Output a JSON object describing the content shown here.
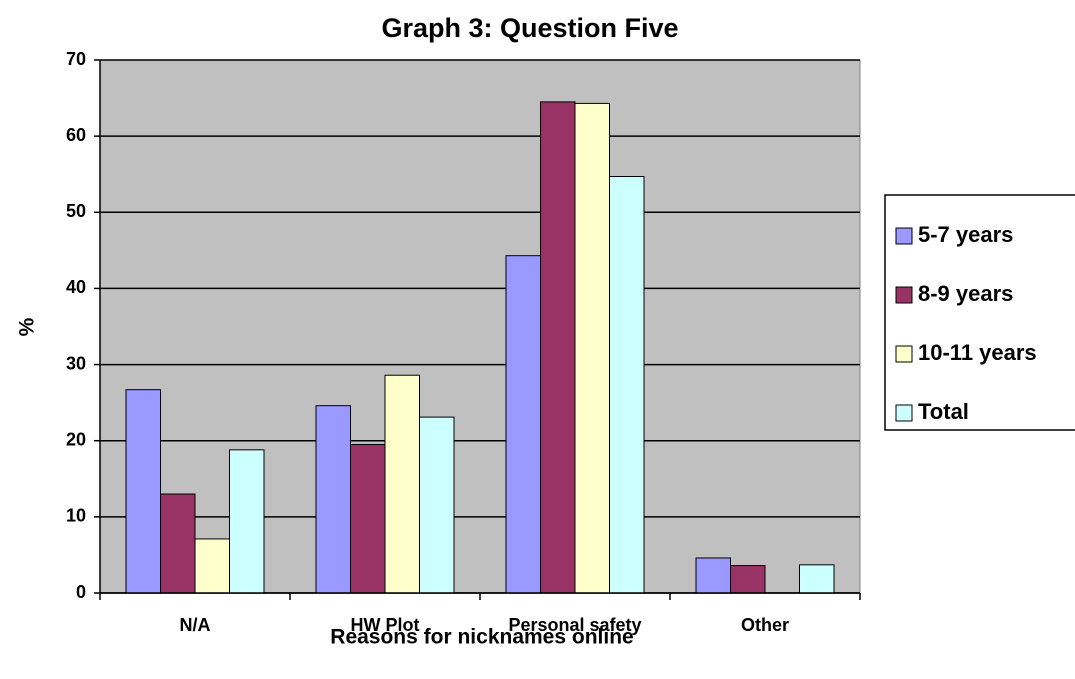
{
  "chart_data": {
    "type": "bar",
    "title": "Graph 3: Question Five",
    "x_label": "Reasons for nicknames online",
    "y_label": "%",
    "categories": [
      "N/A",
      "HW Plot",
      "Personal safety",
      "Other"
    ],
    "series": [
      {
        "name": "5-7 years",
        "color": "#9999ff",
        "values": [
          26.7,
          24.6,
          44.3,
          4.6
        ]
      },
      {
        "name": "8-9 years",
        "color": "#993366",
        "values": [
          13,
          19.5,
          64.5,
          3.6
        ]
      },
      {
        "name": "10-11 years",
        "color": "#ffffcc",
        "values": [
          7.1,
          28.6,
          64.3,
          0
        ]
      },
      {
        "name": "Total",
        "color": "#ccffff",
        "values": [
          18.8,
          23.1,
          54.7,
          3.7
        ]
      }
    ],
    "ylim": [
      0,
      70
    ],
    "yticks": [
      0,
      10,
      20,
      30,
      40,
      50,
      60,
      70
    ],
    "grid": true,
    "legend": "right"
  }
}
